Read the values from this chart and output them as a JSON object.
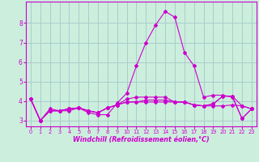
{
  "xlabel": "Windchill (Refroidissement éolien,°C)",
  "bg_color": "#cceedd",
  "line_color": "#cc00cc",
  "grid_color": "#aacccc",
  "x_values": [
    0,
    1,
    2,
    3,
    4,
    5,
    6,
    7,
    8,
    9,
    10,
    11,
    12,
    13,
    14,
    15,
    16,
    17,
    18,
    19,
    20,
    21,
    22,
    23
  ],
  "series": [
    [
      4.1,
      3.0,
      3.6,
      3.5,
      3.5,
      3.65,
      3.4,
      3.3,
      3.3,
      3.9,
      4.4,
      5.8,
      7.0,
      7.9,
      8.6,
      8.3,
      6.5,
      5.8,
      4.2,
      4.3,
      4.3,
      4.2,
      3.1,
      3.6
    ],
    [
      4.1,
      3.0,
      3.5,
      3.5,
      3.6,
      3.65,
      3.5,
      3.4,
      3.65,
      3.8,
      3.95,
      3.95,
      3.95,
      3.95,
      3.95,
      3.95,
      3.95,
      3.8,
      3.75,
      3.75,
      3.75,
      3.8,
      3.75,
      3.6
    ],
    [
      4.1,
      3.0,
      3.5,
      3.5,
      3.6,
      3.65,
      3.5,
      3.4,
      3.65,
      3.8,
      3.95,
      3.95,
      4.05,
      4.05,
      4.05,
      3.95,
      3.95,
      3.8,
      3.75,
      3.85,
      4.25,
      4.25,
      3.75,
      3.6
    ],
    [
      4.1,
      3.0,
      3.5,
      3.5,
      3.6,
      3.65,
      3.5,
      3.4,
      3.65,
      3.8,
      4.1,
      4.2,
      4.2,
      4.2,
      4.2,
      3.95,
      3.95,
      3.8,
      3.75,
      3.85,
      4.25,
      4.25,
      3.1,
      3.6
    ]
  ],
  "ylim": [
    2.7,
    9.1
  ],
  "xlim": [
    -0.5,
    23.5
  ],
  "yticks": [
    3,
    4,
    5,
    6,
    7,
    8
  ],
  "xticks": [
    0,
    1,
    2,
    3,
    4,
    5,
    6,
    7,
    8,
    9,
    10,
    11,
    12,
    13,
    14,
    15,
    16,
    17,
    18,
    19,
    20,
    21,
    22,
    23
  ],
  "xlabel_fontsize": 5.8,
  "tick_fontsize_x": 4.8,
  "tick_fontsize_y": 5.5
}
